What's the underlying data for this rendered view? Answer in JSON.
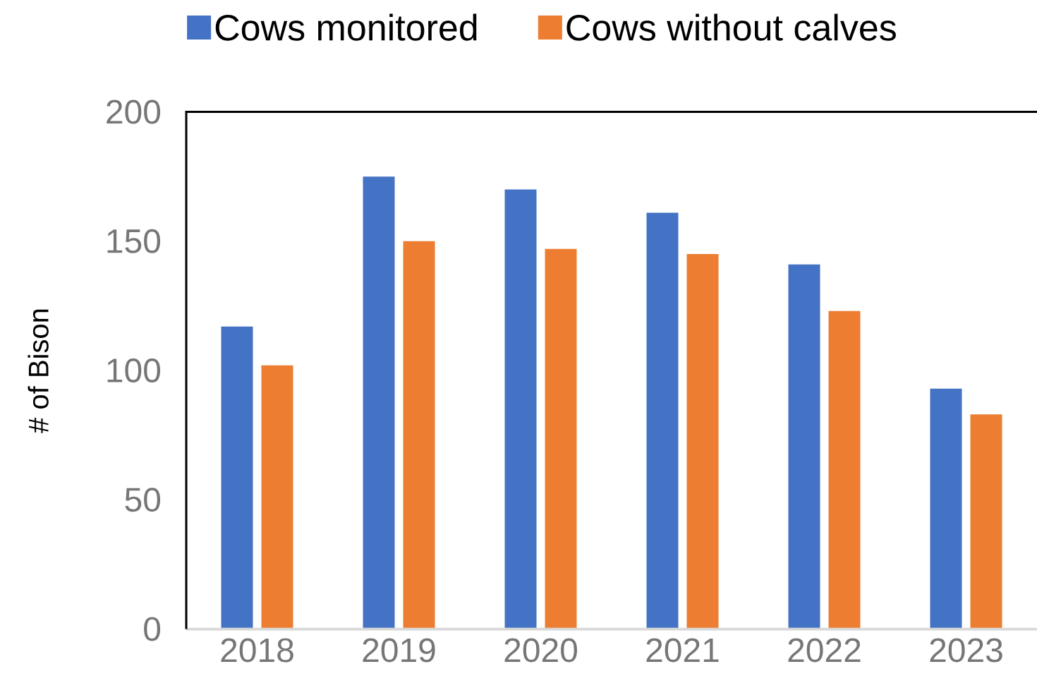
{
  "chart_data": {
    "type": "bar",
    "categories": [
      "2018",
      "2019",
      "2020",
      "2021",
      "2022",
      "2023"
    ],
    "series": [
      {
        "name": "Cows monitored",
        "color": "#4472c4",
        "values": [
          117,
          175,
          170,
          161,
          141,
          93
        ]
      },
      {
        "name": "Cows without calves",
        "color": "#ed7d31",
        "values": [
          102,
          150,
          147,
          145,
          123,
          83
        ]
      }
    ],
    "ylabel": "# of Bison",
    "ylim": [
      0,
      200
    ],
    "yticks": [
      0,
      50,
      100,
      150,
      200
    ],
    "legend": "top"
  }
}
